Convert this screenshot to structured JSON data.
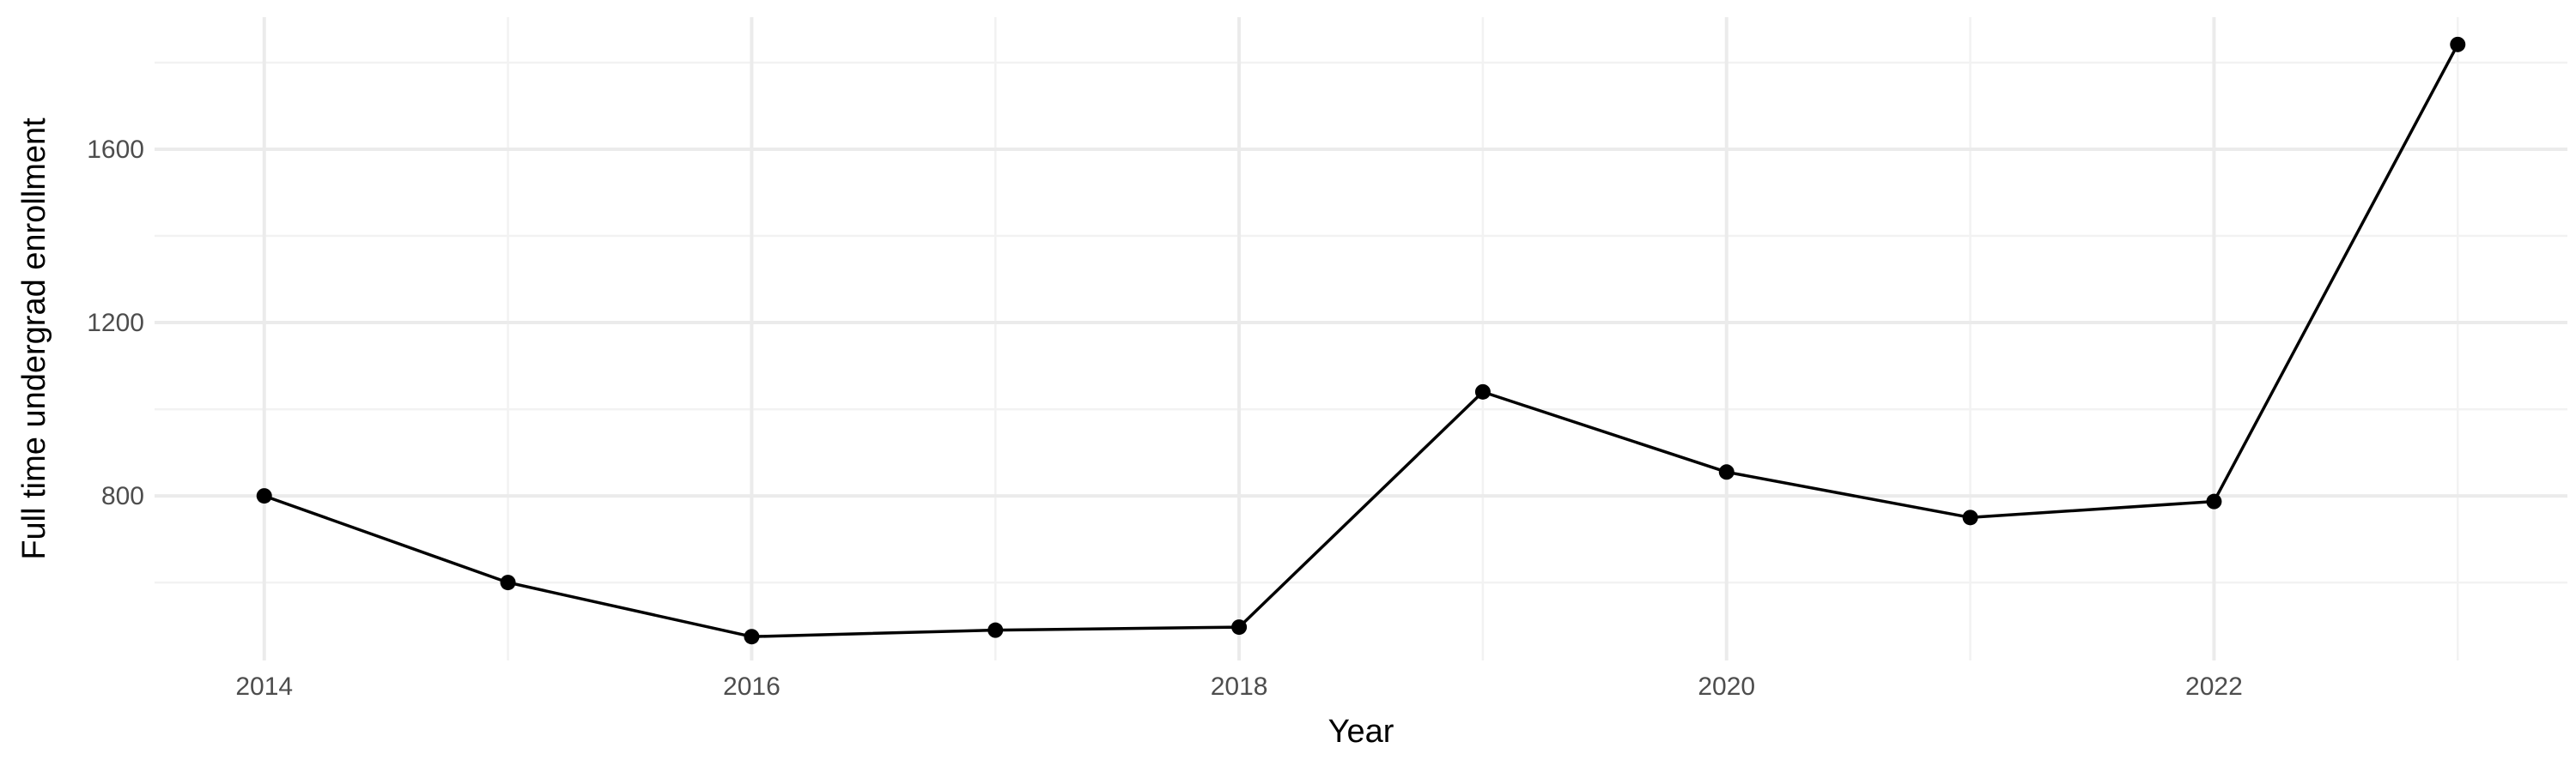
{
  "chart_data": {
    "type": "line",
    "title": "",
    "xlabel": "Year",
    "ylabel": "Full time undergrad enrollment",
    "x": [
      2014,
      2015,
      2016,
      2017,
      2018,
      2019,
      2020,
      2021,
      2022,
      2023
    ],
    "series": [
      {
        "values": [
          800,
          600,
          475,
          490,
          497,
          1040,
          855,
          750,
          787,
          1842
        ]
      }
    ],
    "x_ticks": [
      "2014",
      "2016",
      "2018",
      "2020",
      "2022"
    ],
    "y_ticks": [
      "800",
      "1200",
      "1600"
    ],
    "xlim": [
      2013.55,
      2023.45
    ],
    "ylim": [
      420,
      1905
    ],
    "grid": true,
    "legend": "none",
    "colors": {
      "line": "#000000",
      "grid": "#ebebeb",
      "tick_text": "#4d4d4d"
    }
  }
}
